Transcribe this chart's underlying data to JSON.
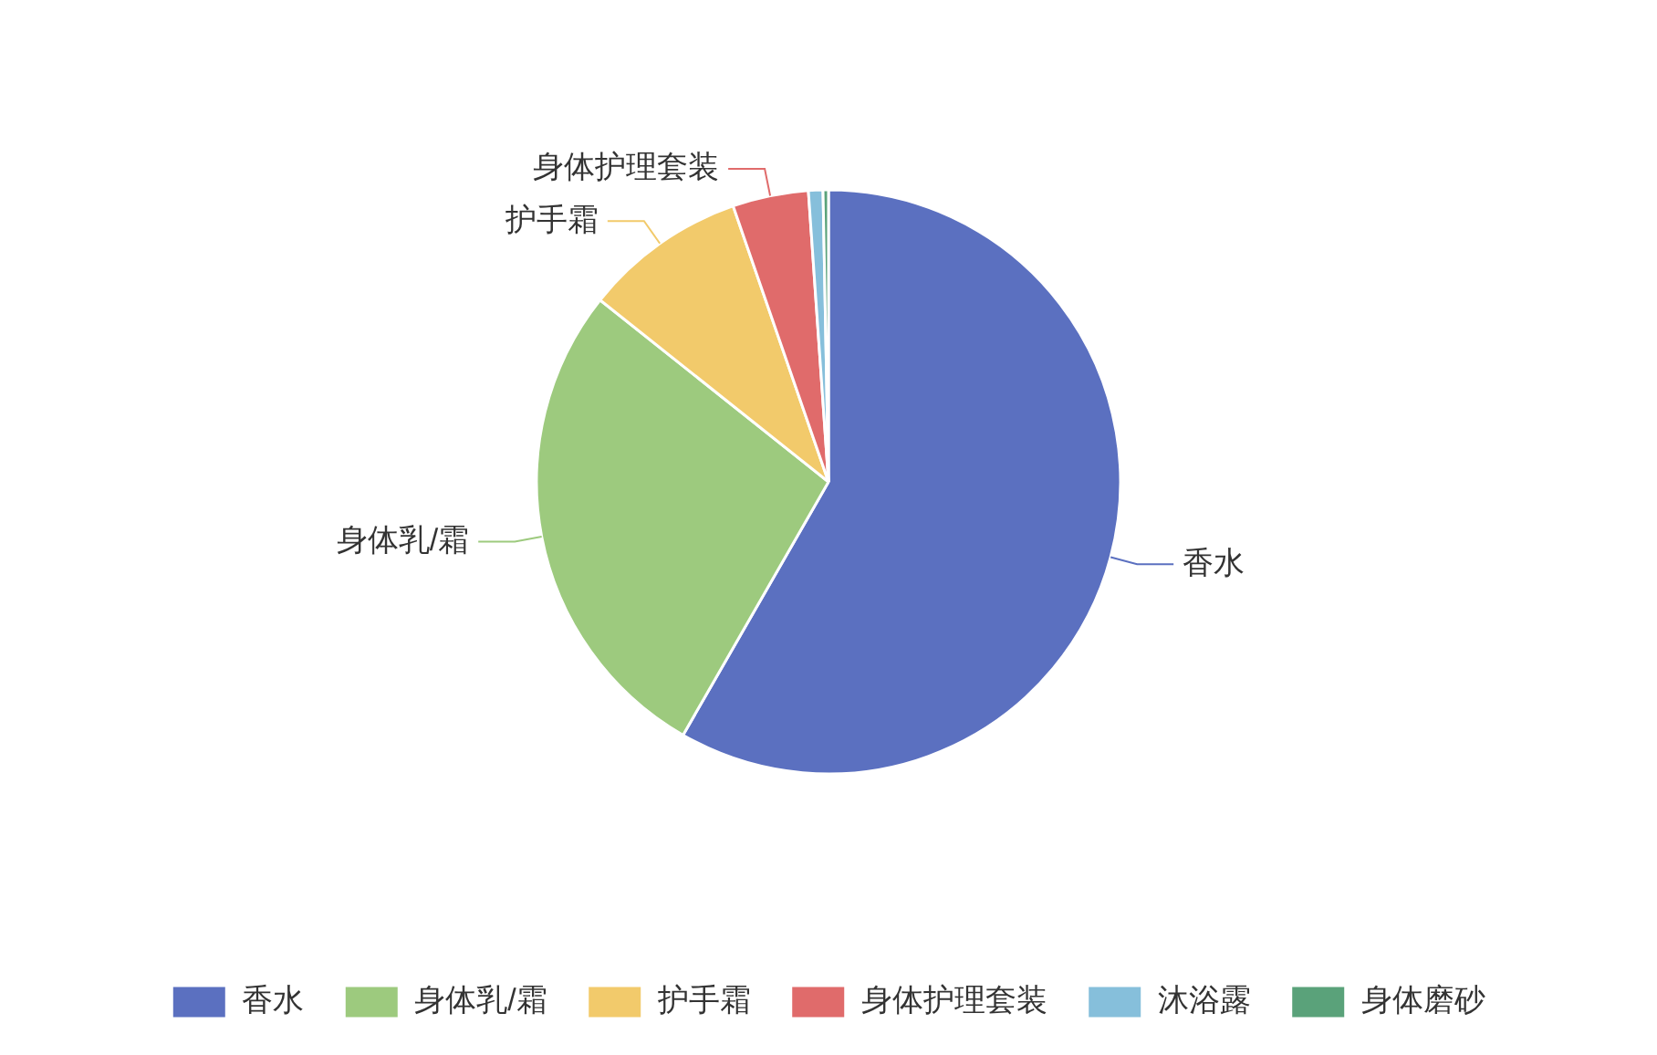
{
  "chart_data": {
    "type": "pie",
    "categories": [
      "香水",
      "身体乳/霜",
      "护手霜",
      "身体护理套装",
      "沐浴露",
      "身体磨砂"
    ],
    "values": [
      58.3,
      27.4,
      9.0,
      4.2,
      0.8,
      0.3
    ],
    "colors": [
      "#5b70c0",
      "#9dca7e",
      "#f2ca6b",
      "#e06b6b",
      "#86bfdb",
      "#5aa27a"
    ],
    "legend": "bottom"
  }
}
